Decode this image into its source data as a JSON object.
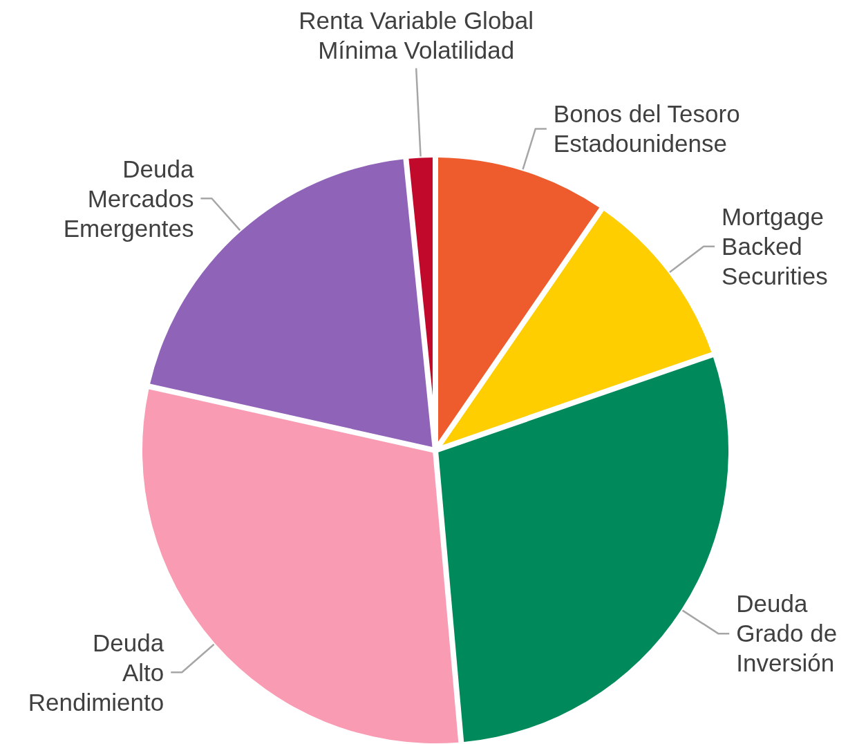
{
  "chart_data": {
    "type": "pie",
    "categories": [
      "Bonos del Tesoro\nEstadounidense",
      "Mortgage\nBacked\nSecurities",
      "Deuda\nGrado de\nInversión",
      "Deuda\nAlto\nRendimiento",
      "Deuda\nMercados\nEmergentes",
      "Renta Variable Global\nMínima Volatilidad"
    ],
    "values": [
      9.6,
      10.1,
      28.9,
      29.9,
      19.9,
      1.6
    ],
    "colors": [
      "#ee5b2d",
      "#ffce00",
      "#00895a",
      "#f89bb3",
      "#8f63b8",
      "#c1092b"
    ]
  }
}
